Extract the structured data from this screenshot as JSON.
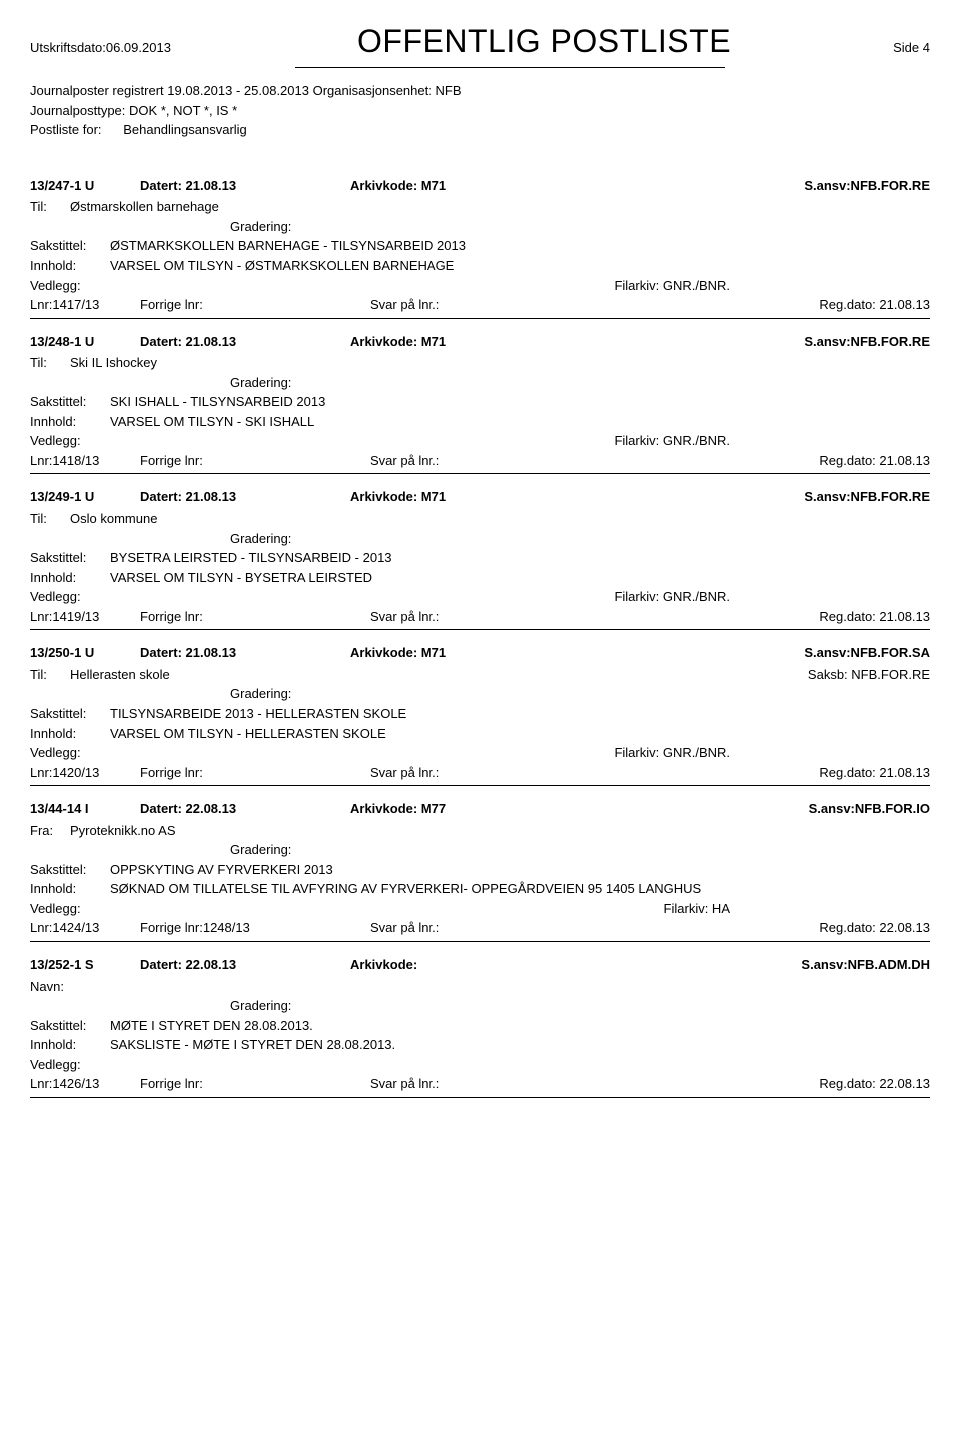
{
  "header": {
    "print_date_label": "Utskriftsdato:",
    "print_date": "06.09.2013",
    "title": "OFFENTLIG POSTLISTE",
    "page_side": "Side 4"
  },
  "meta": {
    "line1_a": "Journalposter registrert",
    "line1_b": "19.08.2013  -  25.08.2013",
    "line1_c": "Organisasjonsenhet:",
    "line1_d": "NFB",
    "line2_a": "Journalposttype:",
    "line2_b": "DOK *, NOT *, IS *",
    "line3_a": "Postliste for:",
    "line3_b": "Behandlingsansvarlig"
  },
  "labels": {
    "til": "Til:",
    "fra": "Fra:",
    "navn": "Navn:",
    "gradering": "Gradering:",
    "sakstittel": "Sakstittel:",
    "innhold": "Innhold:",
    "vedlegg": "Vedlegg:",
    "filarkiv": "Filarkiv:",
    "lnr": "Lnr:",
    "forrige": "Forrige lnr:",
    "svar": "Svar på lnr.:",
    "regdato": "Reg.dato:",
    "datert": "Datert:",
    "arkivkode": "Arkivkode:",
    "sansv": "S.ansv:",
    "saksb": "Saksb:"
  },
  "entries": [
    {
      "case": "13/247-1 U",
      "dated": "21.08.13",
      "arkivkode": "M71",
      "sansv": "NFB.FOR.RE",
      "party_label": "Til:",
      "party": "Østmarskollen barnehage",
      "saksb": "",
      "sakstittel": "ØSTMARKSKOLLEN BARNEHAGE - TILSYNSARBEID 2013",
      "innhold": "VARSEL OM TILSYN - ØSTMARKSKOLLEN BARNEHAGE",
      "filarkiv": "GNR./BNR.",
      "lnr": "1417/13",
      "forrige": "",
      "regdato": "21.08.13"
    },
    {
      "case": "13/248-1 U",
      "dated": "21.08.13",
      "arkivkode": "M71",
      "sansv": "NFB.FOR.RE",
      "party_label": "Til:",
      "party": "Ski IL Ishockey",
      "saksb": "",
      "sakstittel": "SKI ISHALL - TILSYNSARBEID  2013",
      "innhold": "VARSEL OM TILSYN - SKI ISHALL",
      "filarkiv": "GNR./BNR.",
      "lnr": "1418/13",
      "forrige": "",
      "regdato": "21.08.13"
    },
    {
      "case": "13/249-1 U",
      "dated": "21.08.13",
      "arkivkode": "M71",
      "sansv": "NFB.FOR.RE",
      "party_label": "Til:",
      "party": "Oslo kommune",
      "saksb": "",
      "sakstittel": "BYSETRA LEIRSTED - TILSYNSARBEID - 2013",
      "innhold": "VARSEL OM TILSYN - BYSETRA LEIRSTED",
      "filarkiv": "GNR./BNR.",
      "lnr": "1419/13",
      "forrige": "",
      "regdato": "21.08.13"
    },
    {
      "case": "13/250-1 U",
      "dated": "21.08.13",
      "arkivkode": "M71",
      "sansv": "NFB.FOR.SA",
      "party_label": "Til:",
      "party": "Hellerasten skole",
      "saksb": "NFB.FOR.RE",
      "sakstittel": "TILSYNSARBEIDE 2013 - HELLERASTEN SKOLE",
      "innhold": "VARSEL OM TILSYN - HELLERASTEN SKOLE",
      "filarkiv": "GNR./BNR.",
      "lnr": "1420/13",
      "forrige": "",
      "regdato": "21.08.13"
    },
    {
      "case": "13/44-14 I",
      "dated": "22.08.13",
      "arkivkode": "M77",
      "sansv": "NFB.FOR.IO",
      "party_label": "Fra:",
      "party": "Pyroteknikk.no AS",
      "saksb": "",
      "sakstittel": "OPPSKYTING AV FYRVERKERI 2013",
      "innhold": "SØKNAD OM TILLATELSE TIL AVFYRING AV FYRVERKERI- OPPEGÅRDVEIEN 95 1405 LANGHUS",
      "filarkiv": "HA",
      "lnr": "1424/13",
      "forrige": "1248/13",
      "regdato": "22.08.13"
    },
    {
      "case": "13/252-1 S",
      "dated": "22.08.13",
      "arkivkode": "",
      "sansv": "NFB.ADM.DH",
      "party_label": "Navn:",
      "party": "",
      "saksb": "",
      "sakstittel": "MØTE I STYRET DEN 28.08.2013.",
      "innhold": "SAKSLISTE - MØTE I STYRET DEN 28.08.2013.",
      "filarkiv": "",
      "lnr": "1426/13",
      "forrige": "",
      "regdato": "22.08.13"
    }
  ]
}
